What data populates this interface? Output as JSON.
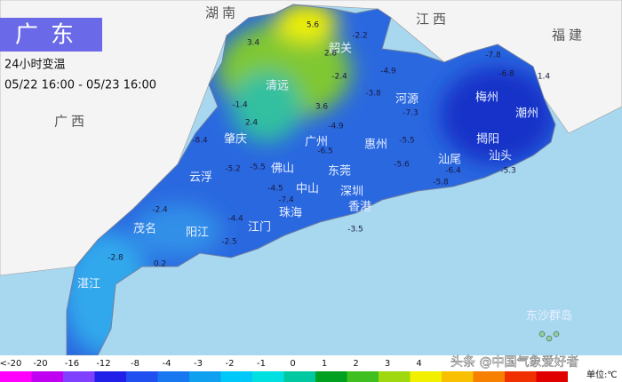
{
  "header": {
    "title": "广东",
    "subtitle": "24小时变温",
    "period": "05/22 16:00 - 05/23 16:00"
  },
  "provinces": [
    "湖南",
    "江西",
    "福建",
    "广西"
  ],
  "cities": [
    "韶关",
    "清远",
    "河源",
    "梅州",
    "潮州",
    "揭阳",
    "汕头",
    "肇庆",
    "广州",
    "惠州",
    "汕尾",
    "云浮",
    "佛山",
    "东莞",
    "中山",
    "深圳",
    "珠海",
    "香港",
    "茂名",
    "阳江",
    "江门",
    "湛江",
    "东沙群岛"
  ],
  "stations": [
    5.6,
    -2.2,
    3.4,
    2.8,
    -4.9,
    -7.8,
    -6.8,
    1.4,
    -2.4,
    -3.8,
    -7.3,
    -1.4,
    2.4,
    3.6,
    -4.9,
    -8.4,
    -5.5,
    -5.2,
    -6.5,
    -5.5,
    -5.6,
    -6.4,
    -5.3,
    -5.8,
    -7.4,
    -2.4,
    -4.4,
    -2.5,
    -2.8,
    0.2,
    -3.5,
    -4.5
  ],
  "legend": {
    "labels": [
      "<-20",
      "-20",
      "-16",
      "-12",
      "-8",
      "-4",
      "-3",
      "-2",
      "-1",
      "0",
      "1",
      "2",
      "3",
      "4"
    ],
    "colors": [
      "#ff00ff",
      "#c000f0",
      "#8040ff",
      "#2020e8",
      "#2050f0",
      "#1878f0",
      "#10a0f0",
      "#00c8f8",
      "#00e0e0",
      "#00c8a0",
      "#00a020",
      "#40c020",
      "#a0d810",
      "#f0f000",
      "#f8c000",
      "#f88000",
      "#f03000",
      "#e00000"
    ],
    "unit": "单位:℃"
  },
  "watermark": "头条 @中国气象爱好者"
}
